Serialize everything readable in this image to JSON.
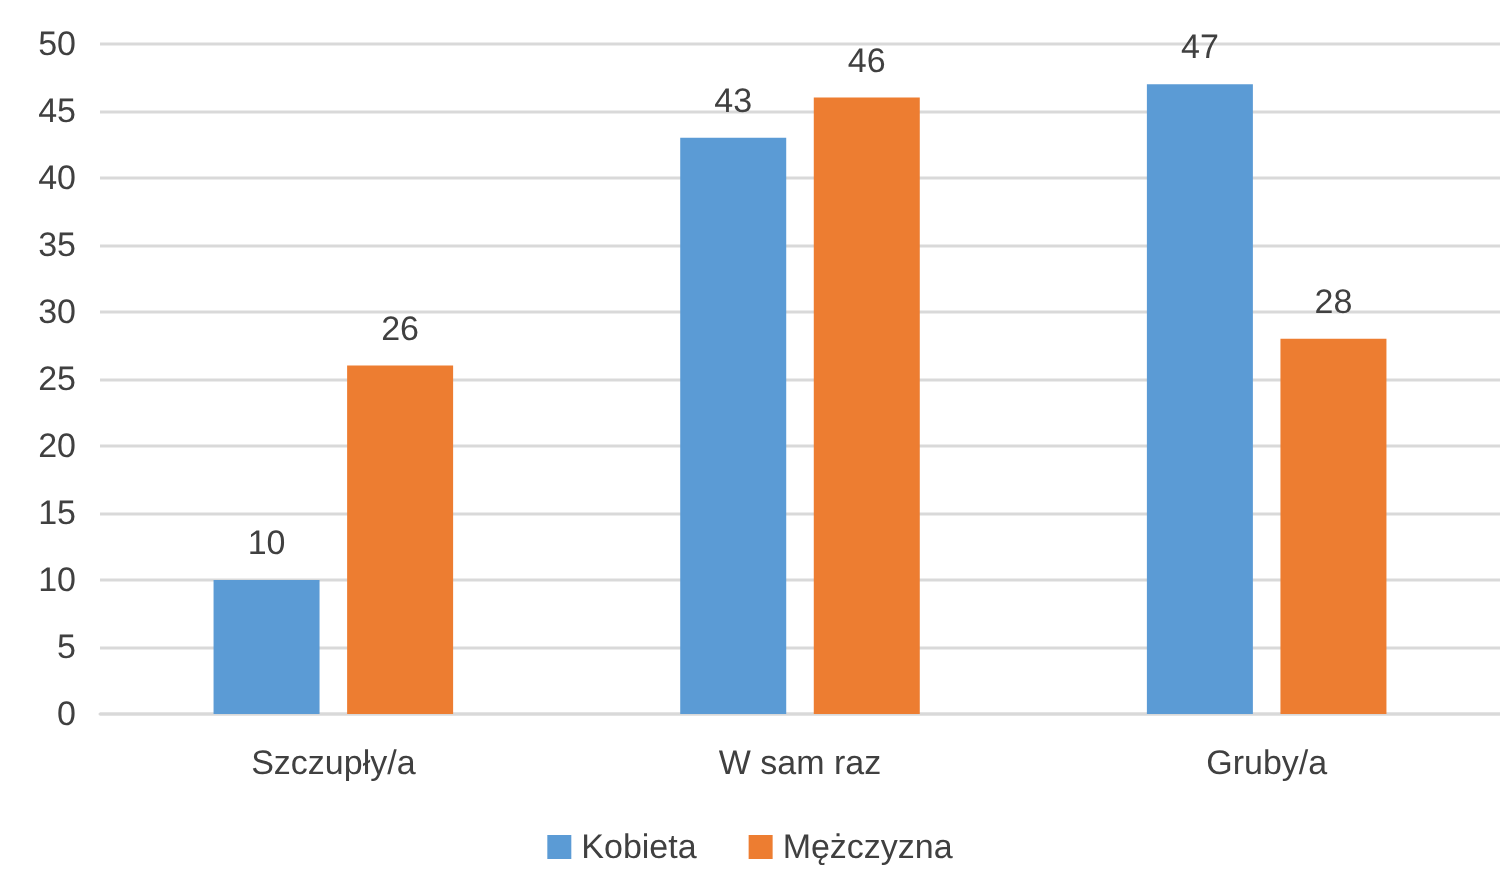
{
  "chart_data": {
    "type": "bar",
    "categories": [
      "Szczupły/a",
      "W sam raz",
      "Gruby/a"
    ],
    "series": [
      {
        "name": "Kobieta",
        "color": "#5b9bd5",
        "values": [
          10,
          43,
          47
        ]
      },
      {
        "name": "Mężczyzna",
        "color": "#ed7d31",
        "values": [
          26,
          46,
          28
        ]
      }
    ],
    "ylim": [
      0,
      50
    ],
    "yticks": [
      0,
      5,
      10,
      15,
      20,
      25,
      30,
      35,
      40,
      45,
      50
    ],
    "grid": "y",
    "legend": "bottom",
    "data_labels": true
  }
}
